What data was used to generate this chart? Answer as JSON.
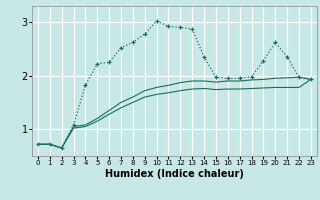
{
  "xlabel": "Humidex (Indice chaleur)",
  "x_ticks": [
    0,
    1,
    2,
    3,
    4,
    5,
    6,
    7,
    8,
    9,
    10,
    11,
    12,
    13,
    14,
    15,
    16,
    17,
    18,
    19,
    20,
    21,
    22,
    23
  ],
  "xlim": [
    -0.5,
    23.5
  ],
  "ylim": [
    0.5,
    3.3
  ],
  "y_ticks": [
    1,
    2,
    3
  ],
  "background_color": "#c8e8e8",
  "grid_color": "#ffffff",
  "line_color": "#1a6b5e",
  "series1_x": [
    0,
    1,
    2,
    3,
    4,
    5,
    6,
    7,
    8,
    9,
    10,
    11,
    12,
    13,
    14,
    15,
    16,
    17,
    18,
    19,
    20,
    21,
    22,
    23
  ],
  "series1_y": [
    0.72,
    0.72,
    0.65,
    1.08,
    1.82,
    2.22,
    2.25,
    2.52,
    2.62,
    2.78,
    3.02,
    2.92,
    2.9,
    2.87,
    2.35,
    1.97,
    1.95,
    1.95,
    1.98,
    2.28,
    2.62,
    2.35,
    1.97,
    1.93
  ],
  "series2_x": [
    0,
    1,
    2,
    3,
    4,
    5,
    6,
    7,
    8,
    9,
    10,
    11,
    12,
    13,
    14,
    15,
    16,
    17,
    18,
    19,
    20,
    21,
    22,
    23
  ],
  "series2_y": [
    0.72,
    0.72,
    0.65,
    1.05,
    1.08,
    1.2,
    1.35,
    1.5,
    1.6,
    1.72,
    1.78,
    1.82,
    1.87,
    1.9,
    1.9,
    1.88,
    1.9,
    1.9,
    1.92,
    1.93,
    1.95,
    1.96,
    1.97,
    1.93
  ],
  "series3_x": [
    0,
    1,
    2,
    3,
    4,
    5,
    6,
    7,
    8,
    9,
    10,
    11,
    12,
    13,
    14,
    15,
    16,
    17,
    18,
    19,
    20,
    21,
    22,
    23
  ],
  "series3_y": [
    0.72,
    0.72,
    0.65,
    1.02,
    1.05,
    1.15,
    1.28,
    1.4,
    1.5,
    1.6,
    1.65,
    1.68,
    1.72,
    1.75,
    1.76,
    1.74,
    1.75,
    1.75,
    1.76,
    1.77,
    1.78,
    1.78,
    1.78,
    1.93
  ]
}
